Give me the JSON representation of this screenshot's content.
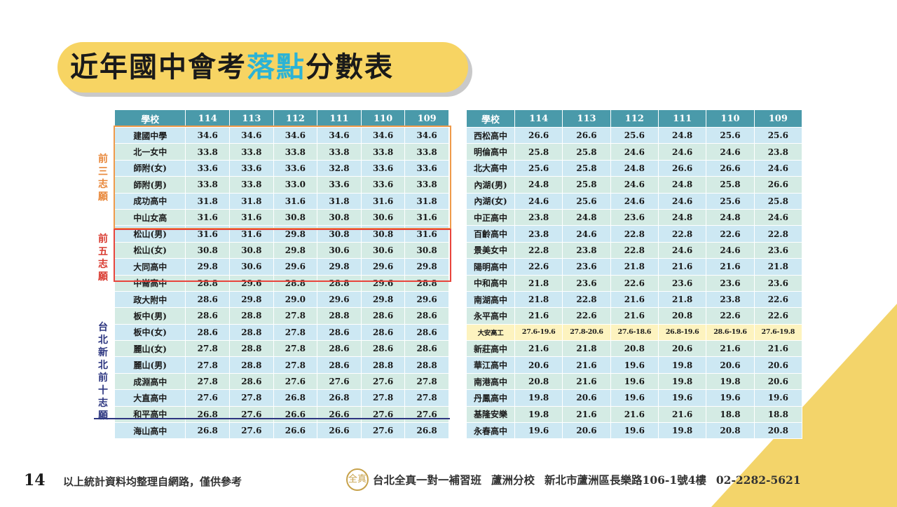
{
  "title": {
    "part1": "近年國中會考",
    "highlight": "落點",
    "part2": "分數表"
  },
  "headers": [
    "學校",
    "114",
    "113",
    "112",
    "111",
    "110",
    "109"
  ],
  "group_labels": {
    "top3": "前三志願",
    "top5": "前五志願",
    "top10": "台北新北前十志願"
  },
  "left_rows": [
    [
      "建國中學",
      "34.6",
      "34.6",
      "34.6",
      "34.6",
      "34.6",
      "34.6"
    ],
    [
      "北一女中",
      "33.8",
      "33.8",
      "33.8",
      "33.8",
      "33.8",
      "33.8"
    ],
    [
      "師附(女)",
      "33.6",
      "33.6",
      "33.6",
      "32.8",
      "33.6",
      "33.6"
    ],
    [
      "師附(男)",
      "33.8",
      "33.8",
      "33.0",
      "33.6",
      "33.6",
      "33.8"
    ],
    [
      "成功高中",
      "31.8",
      "31.8",
      "31.6",
      "31.8",
      "31.6",
      "31.8"
    ],
    [
      "中山女高",
      "31.6",
      "31.6",
      "30.8",
      "30.8",
      "30.6",
      "31.6"
    ],
    [
      "松山(男)",
      "31.6",
      "31.6",
      "29.8",
      "30.8",
      "30.8",
      "31.6"
    ],
    [
      "松山(女)",
      "30.8",
      "30.8",
      "29.8",
      "30.6",
      "30.6",
      "30.8"
    ],
    [
      "大同高中",
      "29.8",
      "30.6",
      "29.6",
      "29.8",
      "29.6",
      "29.8"
    ],
    [
      "中崙高中",
      "28.8",
      "29.6",
      "28.8",
      "28.8",
      "29.6",
      "28.8"
    ],
    [
      "政大附中",
      "28.6",
      "29.8",
      "29.0",
      "29.6",
      "29.8",
      "29.6"
    ],
    [
      "板中(男)",
      "28.6",
      "28.8",
      "27.8",
      "28.8",
      "28.6",
      "28.6"
    ],
    [
      "板中(女)",
      "28.6",
      "28.8",
      "27.8",
      "28.6",
      "28.6",
      "28.6"
    ],
    [
      "麗山(女)",
      "27.8",
      "28.8",
      "27.8",
      "28.6",
      "28.6",
      "28.6"
    ],
    [
      "麗山(男)",
      "27.8",
      "28.8",
      "27.8",
      "28.6",
      "28.8",
      "28.8"
    ],
    [
      "成淵高中",
      "27.8",
      "28.6",
      "27.6",
      "27.6",
      "27.6",
      "27.8"
    ],
    [
      "大直高中",
      "27.6",
      "27.8",
      "26.8",
      "26.8",
      "27.8",
      "27.8"
    ],
    [
      "和平高中",
      "26.8",
      "27.6",
      "26.6",
      "26.6",
      "27.6",
      "27.6"
    ],
    [
      "海山高中",
      "26.8",
      "27.6",
      "26.6",
      "26.6",
      "27.6",
      "26.8"
    ]
  ],
  "right_rows": [
    [
      "西松高中",
      "26.6",
      "26.6",
      "25.6",
      "24.8",
      "25.6",
      "25.6"
    ],
    [
      "明倫高中",
      "25.8",
      "25.8",
      "24.6",
      "24.6",
      "24.6",
      "23.8"
    ],
    [
      "北大高中",
      "25.6",
      "25.8",
      "24.8",
      "26.6",
      "26.6",
      "24.6"
    ],
    [
      "內湖(男)",
      "24.8",
      "25.8",
      "24.6",
      "24.8",
      "25.8",
      "26.6"
    ],
    [
      "內湖(女)",
      "24.6",
      "25.6",
      "24.6",
      "24.6",
      "25.6",
      "25.8"
    ],
    [
      "中正高中",
      "23.8",
      "24.8",
      "23.6",
      "24.8",
      "24.8",
      "24.6"
    ],
    [
      "百齡高中",
      "23.8",
      "24.6",
      "22.8",
      "22.8",
      "22.6",
      "22.8"
    ],
    [
      "景美女中",
      "22.8",
      "23.8",
      "22.8",
      "24.6",
      "24.6",
      "23.6"
    ],
    [
      "陽明高中",
      "22.6",
      "23.6",
      "21.8",
      "21.6",
      "21.6",
      "21.8"
    ],
    [
      "中和高中",
      "21.8",
      "23.6",
      "22.6",
      "23.6",
      "23.6",
      "23.6"
    ],
    [
      "南湖高中",
      "21.8",
      "22.8",
      "21.6",
      "21.8",
      "23.8",
      "22.6"
    ],
    [
      "永平高中",
      "21.6",
      "22.6",
      "21.6",
      "20.8",
      "22.6",
      "22.6"
    ],
    [
      "大安高工",
      "27.6-19.6",
      "27.8-20.6",
      "27.6-18.6",
      "26.8-19.6",
      "28.6-19.6",
      "27.6-19.8"
    ],
    [
      "新莊高中",
      "21.6",
      "21.8",
      "20.8",
      "20.6",
      "21.6",
      "21.6"
    ],
    [
      "華江高中",
      "20.6",
      "21.6",
      "19.6",
      "19.8",
      "20.6",
      "20.6"
    ],
    [
      "南港高中",
      "20.8",
      "21.6",
      "19.6",
      "19.8",
      "19.8",
      "20.6"
    ],
    [
      "丹鳳高中",
      "19.8",
      "20.6",
      "19.6",
      "19.6",
      "19.6",
      "19.6"
    ],
    [
      "基隆安樂",
      "19.8",
      "21.6",
      "21.6",
      "21.6",
      "18.8",
      "18.8"
    ],
    [
      "永春高中",
      "19.6",
      "20.6",
      "19.6",
      "19.8",
      "20.8",
      "20.8"
    ]
  ],
  "highlight_row_name": "大安高工",
  "footer": {
    "page_number": "14",
    "note": "以上統計資料均整理自網路，僅供參考",
    "logo_text": "全真",
    "institution": "台北全真一對一補習班",
    "branch": "蘆洲分校",
    "address": "新北市蘆洲區長樂路106-1號4樓",
    "phone": "02-2282-5621"
  },
  "colors": {
    "header_bg": "#4a9aaa",
    "row_blue": "#cde8f3",
    "row_green": "#d4ebe4",
    "title_bg": "#f7d463",
    "title_highlight": "#2bb3d6",
    "top3": "#e8873a",
    "top5": "#d93a30",
    "top10": "#2d3680"
  }
}
